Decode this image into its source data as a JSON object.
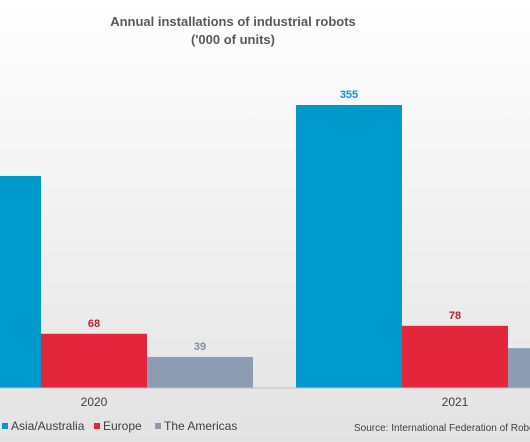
{
  "chart_data": {
    "type": "bar",
    "title": "Annual installations of industrial robots",
    "subtitle": "('000 of units)",
    "categories": [
      "2020",
      "2021"
    ],
    "series": [
      {
        "name": "Asia/Australia",
        "color": "#0099cc",
        "values": [
          266,
          355
        ],
        "labels": [
          "",
          "355"
        ]
      },
      {
        "name": "Europe",
        "color": "#e3263c",
        "values": [
          68,
          78
        ],
        "labels": [
          "68",
          "78"
        ]
      },
      {
        "name": "The Americas",
        "color": "#8c9db3",
        "values": [
          39,
          50
        ],
        "labels": [
          "39",
          ""
        ]
      }
    ],
    "label_colors": {
      "Asia/Australia": "#0099cc",
      "Europe": "#c0202e",
      "The Americas": "#7f8fa6"
    },
    "ylim": [
      0,
      355
    ],
    "grid": false,
    "legend_position": "bottom-left"
  },
  "source": "Source: International Federation of Robotics"
}
